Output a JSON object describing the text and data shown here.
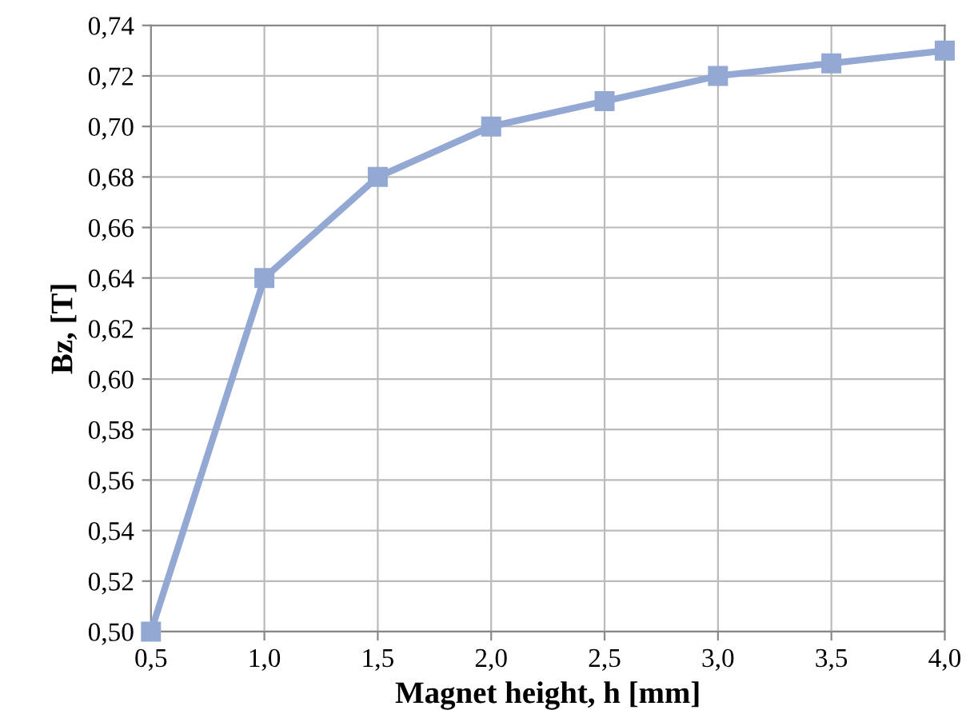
{
  "chart_data": {
    "type": "line",
    "xlabel": "Magnet height, h [mm]",
    "ylabel": "Bz, [T]",
    "x": [
      0.5,
      1.0,
      1.5,
      2.0,
      2.5,
      3.0,
      3.5,
      4.0
    ],
    "series": [
      {
        "color": "#93a8d2",
        "values": [
          0.5,
          0.64,
          0.68,
          0.7,
          0.71,
          0.72,
          0.725,
          0.73
        ]
      }
    ],
    "xlim": [
      0.5,
      4.0
    ],
    "xticks": [
      {
        "value": 0.5,
        "label": "0,5"
      },
      {
        "value": 1.0,
        "label": "1,0"
      },
      {
        "value": 1.5,
        "label": "1,5"
      },
      {
        "value": 2.0,
        "label": "2,0"
      },
      {
        "value": 2.5,
        "label": "2,5"
      },
      {
        "value": 3.0,
        "label": "3,0"
      },
      {
        "value": 3.5,
        "label": "3,5"
      },
      {
        "value": 4.0,
        "label": "4,0"
      }
    ],
    "ylim": [
      0.5,
      0.74
    ],
    "yticks": [
      {
        "value": 0.5,
        "label": "0,50"
      },
      {
        "value": 0.52,
        "label": "0,52"
      },
      {
        "value": 0.54,
        "label": "0,54"
      },
      {
        "value": 0.56,
        "label": "0,56"
      },
      {
        "value": 0.58,
        "label": "0,58"
      },
      {
        "value": 0.6,
        "label": "0,60"
      },
      {
        "value": 0.62,
        "label": "0,62"
      },
      {
        "value": 0.64,
        "label": "0,64"
      },
      {
        "value": 0.66,
        "label": "0,66"
      },
      {
        "value": 0.68,
        "label": "0,68"
      },
      {
        "value": 0.7,
        "label": "0,70"
      },
      {
        "value": 0.72,
        "label": "0,72"
      },
      {
        "value": 0.74,
        "label": "0,74"
      }
    ],
    "grid": true,
    "marker": "square",
    "line_style": "solid"
  }
}
